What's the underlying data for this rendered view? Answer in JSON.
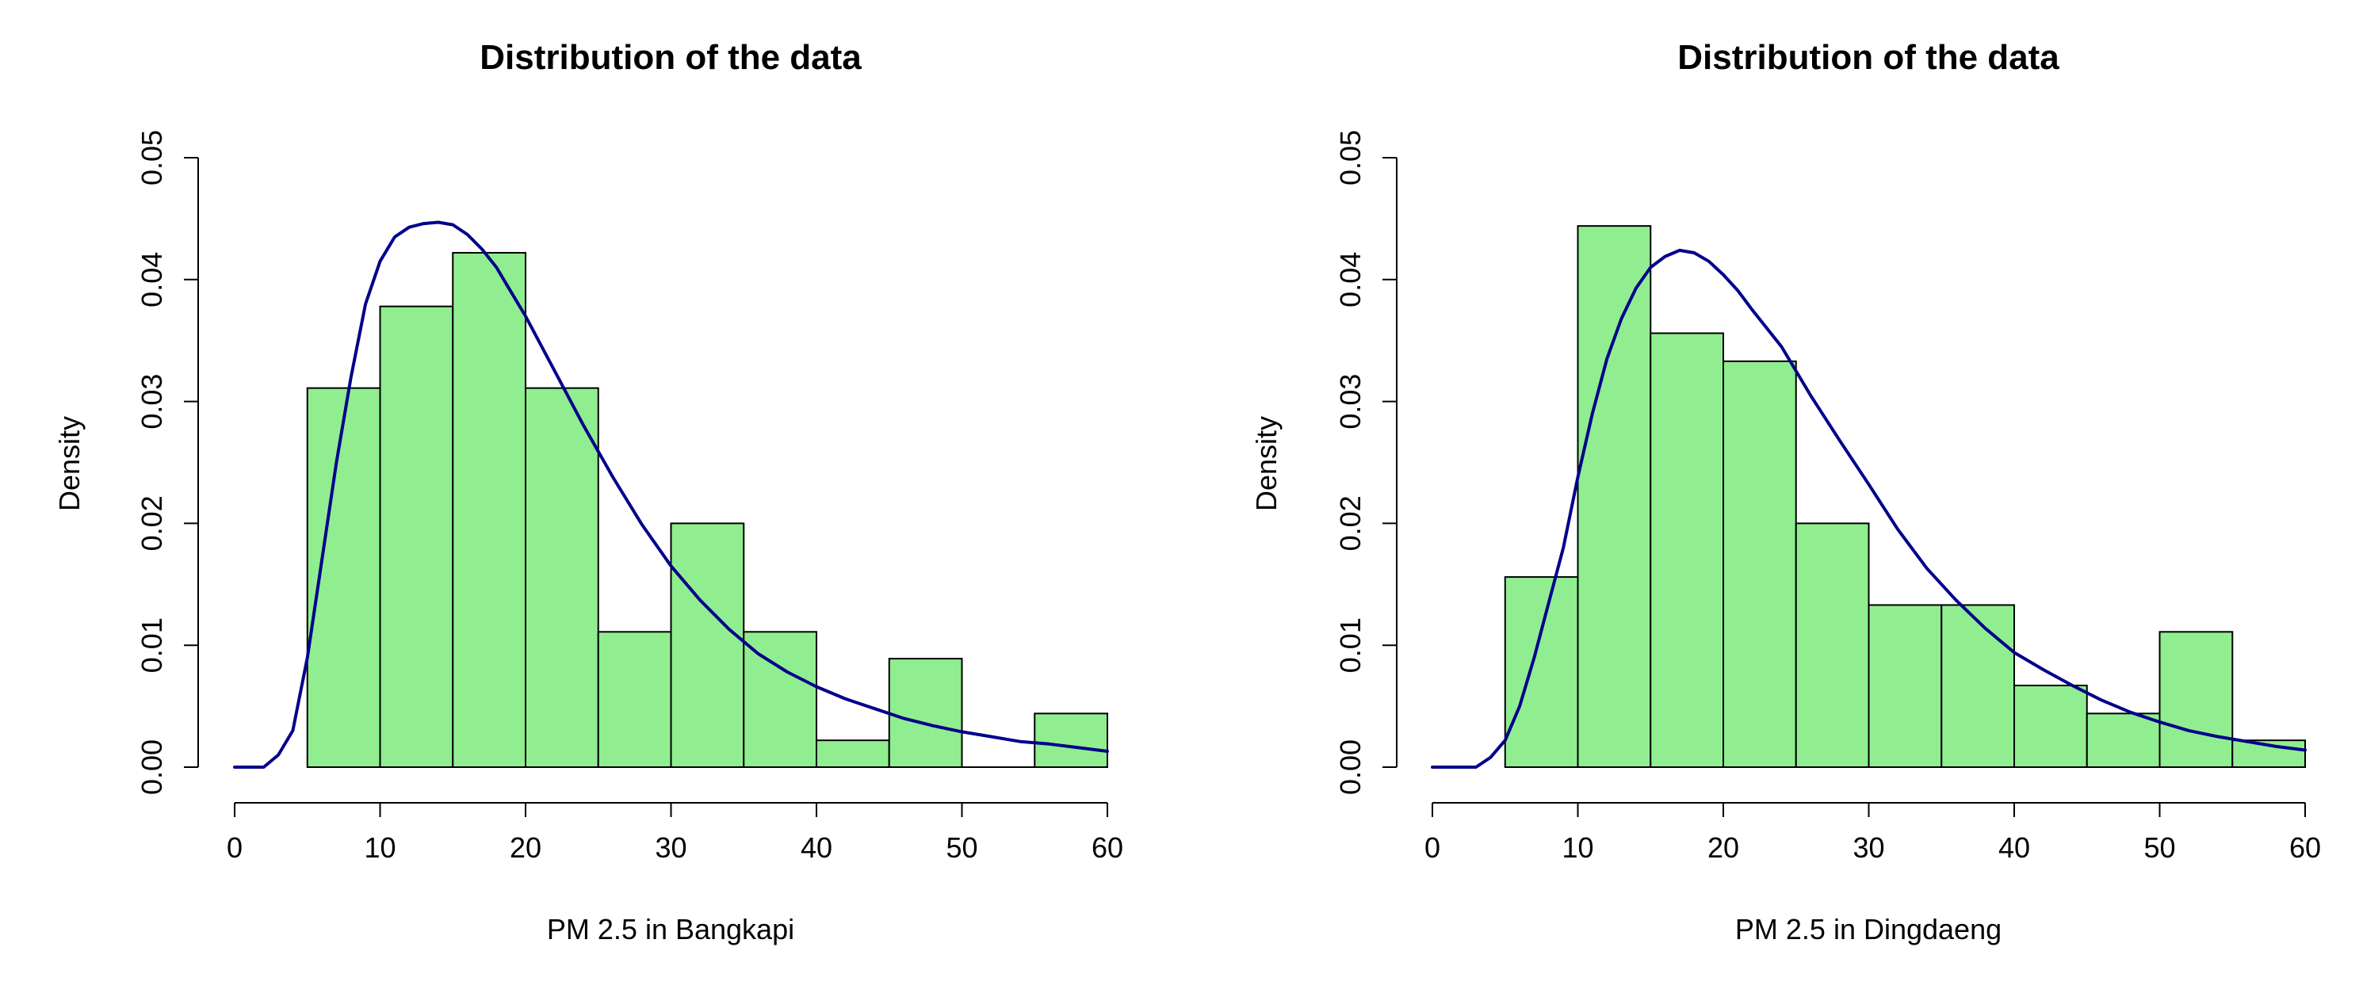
{
  "colors": {
    "bar_fill": "#90ee90",
    "bar_stroke": "#000000",
    "curve": "#00008b",
    "axis": "#000000"
  },
  "chart_data": [
    {
      "type": "bar",
      "title": "Distribution of the data",
      "xlabel": "PM 2.5 in Bangkapi",
      "ylabel": "Density",
      "xlim": [
        0,
        60
      ],
      "ylim": [
        0,
        0.05
      ],
      "xticks": [
        "0",
        "10",
        "20",
        "30",
        "40",
        "50",
        "60"
      ],
      "yticks": [
        "0.00",
        "0.01",
        "0.02",
        "0.03",
        "0.04",
        "0.05"
      ],
      "bin_edges": [
        5,
        10,
        15,
        20,
        25,
        30,
        35,
        40,
        45,
        50,
        55,
        60
      ],
      "values": [
        0.0311,
        0.0378,
        0.0422,
        0.0311,
        0.0111,
        0.02,
        0.0111,
        0.0022,
        0.0089,
        0.0,
        0.0044
      ],
      "density_curve": {
        "x": [
          0,
          2,
          3,
          4,
          5,
          6,
          7,
          8,
          9,
          10,
          11,
          12,
          13,
          14,
          15,
          16,
          17,
          18,
          19,
          20,
          22,
          24,
          26,
          28,
          30,
          32,
          34,
          36,
          38,
          40,
          42,
          44,
          46,
          48,
          50,
          52,
          54,
          56,
          58,
          60
        ],
        "y": [
          0.0,
          0.0,
          0.001,
          0.003,
          0.009,
          0.017,
          0.025,
          0.032,
          0.038,
          0.0415,
          0.0435,
          0.0443,
          0.0446,
          0.0447,
          0.0445,
          0.0437,
          0.0425,
          0.041,
          0.039,
          0.037,
          0.0325,
          0.028,
          0.0238,
          0.0199,
          0.0165,
          0.0137,
          0.0113,
          0.0093,
          0.0078,
          0.0066,
          0.0056,
          0.0048,
          0.004,
          0.0034,
          0.0029,
          0.0025,
          0.0021,
          0.0019,
          0.0016,
          0.0013
        ]
      }
    },
    {
      "type": "bar",
      "title": "Distribution of the data",
      "xlabel": "PM 2.5 in Dingdaeng",
      "ylabel": "Density",
      "xlim": [
        0,
        60
      ],
      "ylim": [
        0,
        0.05
      ],
      "xticks": [
        "0",
        "10",
        "20",
        "30",
        "40",
        "50",
        "60"
      ],
      "yticks": [
        "0.00",
        "0.01",
        "0.02",
        "0.03",
        "0.04",
        "0.05"
      ],
      "bin_edges": [
        5,
        10,
        15,
        20,
        25,
        30,
        35,
        40,
        45,
        50,
        55,
        60
      ],
      "values": [
        0.0156,
        0.0444,
        0.0356,
        0.0333,
        0.02,
        0.0133,
        0.0133,
        0.0067,
        0.0044,
        0.0111,
        0.0022
      ],
      "density_curve": {
        "x": [
          0,
          3,
          4,
          5,
          6,
          7,
          8,
          9,
          10,
          11,
          12,
          13,
          14,
          15,
          16,
          17,
          18,
          19,
          20,
          21,
          22,
          24,
          26,
          28,
          30,
          32,
          34,
          36,
          38,
          40,
          42,
          44,
          46,
          48,
          50,
          52,
          54,
          56,
          58,
          60
        ],
        "y": [
          0.0,
          0.0,
          0.0008,
          0.0022,
          0.005,
          0.009,
          0.0135,
          0.018,
          0.0238,
          0.029,
          0.0335,
          0.0368,
          0.0393,
          0.041,
          0.0419,
          0.0424,
          0.0422,
          0.0415,
          0.0404,
          0.0391,
          0.0375,
          0.0345,
          0.0305,
          0.0268,
          0.0232,
          0.0195,
          0.0163,
          0.0137,
          0.0114,
          0.0094,
          0.008,
          0.0067,
          0.0055,
          0.0045,
          0.0037,
          0.003,
          0.0025,
          0.0021,
          0.0017,
          0.0014
        ]
      }
    }
  ]
}
